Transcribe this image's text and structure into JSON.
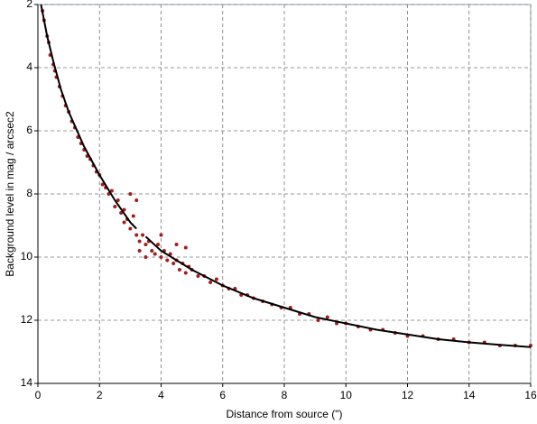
{
  "chart_data": {
    "type": "scatter",
    "xlabel": "Distance from source (\")",
    "ylabel": "Background level in mag / arcsec2",
    "xlim": [
      0,
      16
    ],
    "xticks": [
      0,
      2,
      4,
      6,
      8,
      10,
      12,
      14,
      16
    ],
    "ylim": [
      2,
      14
    ],
    "yticks": [
      2,
      4,
      6,
      8,
      10,
      12,
      14
    ],
    "y_inverted": true,
    "grid": true,
    "series": [
      {
        "type": "scatter",
        "color": "#a51c1c",
        "x": [
          0.15,
          0.2,
          0.3,
          0.35,
          0.4,
          0.5,
          0.55,
          0.6,
          0.7,
          0.8,
          0.9,
          1.0,
          1.1,
          1.2,
          1.3,
          1.4,
          1.5,
          1.6,
          1.7,
          1.8,
          1.9,
          2.0,
          2.1,
          2.2,
          2.3,
          2.4,
          2.5,
          2.6,
          2.7,
          2.8,
          2.9,
          3.0,
          3.1,
          3.2,
          3.3,
          3.4,
          3.5,
          3.6,
          3.7,
          3.8,
          3.9,
          4.0,
          4.1,
          4.2,
          4.3,
          4.4,
          4.5,
          4.6,
          4.7,
          4.8,
          4.9,
          5.0,
          5.2,
          5.4,
          5.6,
          5.8,
          6.0,
          6.2,
          6.4,
          6.6,
          6.8,
          7.0,
          7.3,
          7.6,
          7.9,
          8.2,
          8.5,
          8.8,
          9.1,
          9.4,
          9.7,
          10.0,
          10.4,
          10.8,
          11.2,
          11.6,
          12.0,
          12.5,
          13.0,
          13.5,
          14.0,
          14.5,
          15.0,
          15.5,
          16.0,
          3.3,
          3.5,
          4.0,
          4.5,
          2.8,
          3.0,
          3.2,
          4.8
        ],
        "values": [
          2.2,
          2.5,
          3.0,
          3.2,
          3.6,
          3.9,
          4.1,
          4.3,
          4.6,
          4.9,
          5.2,
          5.4,
          5.7,
          5.9,
          6.2,
          6.4,
          6.6,
          6.8,
          6.9,
          7.1,
          7.3,
          7.4,
          7.7,
          7.8,
          8.0,
          7.9,
          8.4,
          8.2,
          8.6,
          8.9,
          8.8,
          9.1,
          8.7,
          9.3,
          9.5,
          9.3,
          9.6,
          9.5,
          9.8,
          9.9,
          9.6,
          10.0,
          9.8,
          10.1,
          9.9,
          10.2,
          10.1,
          10.4,
          10.2,
          10.5,
          10.3,
          10.4,
          10.6,
          10.6,
          10.8,
          10.7,
          10.9,
          11.0,
          11.0,
          11.2,
          11.2,
          11.3,
          11.4,
          11.5,
          11.6,
          11.6,
          11.8,
          11.8,
          12.0,
          11.9,
          12.1,
          12.1,
          12.2,
          12.3,
          12.3,
          12.4,
          12.5,
          12.5,
          12.6,
          12.6,
          12.7,
          12.7,
          12.8,
          12.8,
          12.8,
          9.8,
          10.0,
          9.3,
          9.6,
          8.5,
          8.0,
          8.2,
          9.7
        ]
      },
      {
        "type": "line",
        "color": "#000000",
        "x": [
          0.1,
          0.3,
          0.5,
          0.75,
          1,
          1.5,
          2,
          2.5,
          3,
          3.2,
          3.3,
          3.5,
          4,
          5,
          6,
          7,
          8,
          9,
          10,
          11,
          12,
          13,
          14,
          15,
          16
        ],
        "values": [
          2.0,
          3.0,
          3.8,
          4.7,
          5.4,
          6.5,
          7.4,
          8.2,
          8.9,
          9.1,
          null,
          9.35,
          9.8,
          10.4,
          10.9,
          11.3,
          11.6,
          11.9,
          12.1,
          12.3,
          12.45,
          12.6,
          12.7,
          12.78,
          12.85
        ]
      }
    ]
  }
}
